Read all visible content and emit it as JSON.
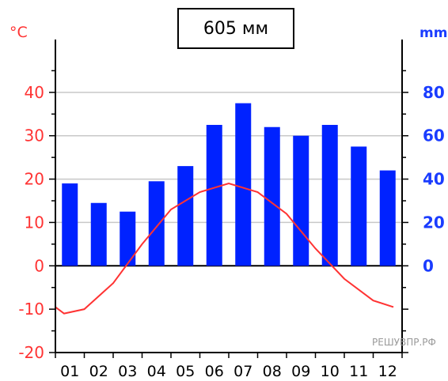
{
  "total_label": "605 мм",
  "watermark": "РЕШУВПР.РФ",
  "chart_data": {
    "type": "bar",
    "categories": [
      "01",
      "02",
      "03",
      "04",
      "05",
      "06",
      "07",
      "08",
      "09",
      "10",
      "11",
      "12"
    ],
    "series": [
      {
        "values": [
          38,
          29,
          25,
          39,
          46,
          65,
          75,
          64,
          60,
          65,
          55,
          44
        ],
        "axis": "right",
        "kind": "bar",
        "color": "#0022ff"
      },
      {
        "values": [
          -9.5,
          -11,
          -10,
          -4,
          5,
          13,
          17,
          19,
          17,
          12,
          4,
          -3,
          -8,
          -9.5
        ],
        "x": [
          0.5,
          0.8,
          1.5,
          2.5,
          3.5,
          4.5,
          5.5,
          6.5,
          7.5,
          8.5,
          9.5,
          10.5,
          11.5,
          12.2
        ],
        "axis": "left",
        "kind": "line",
        "color": "#ff3333"
      }
    ],
    "left_axis": {
      "unit": "°C",
      "ticks": [
        -20,
        -10,
        0,
        10,
        20,
        30,
        40
      ],
      "range": [
        -20,
        50
      ],
      "color": "#ff3333"
    },
    "right_axis": {
      "unit": "mm",
      "ticks": [
        0,
        20,
        40,
        60,
        80
      ],
      "range": [
        -40,
        100
      ],
      "color": "#1a3cff"
    },
    "grid": true
  }
}
